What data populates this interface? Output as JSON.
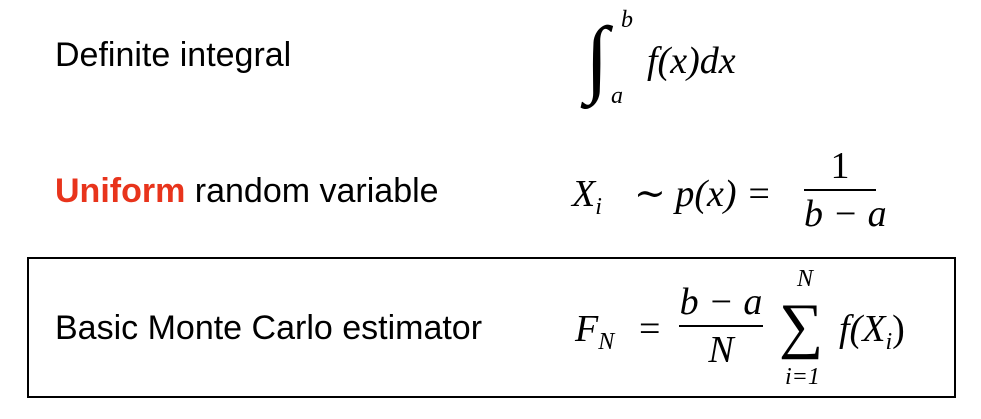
{
  "rows": [
    {
      "label": "Definite integral",
      "math": {
        "upper": "b",
        "lower": "a",
        "integrand": "f(x)dx"
      }
    },
    {
      "label_highlight": "Uniform",
      "label_rest": " random variable",
      "highlight_color": "#e8341c",
      "math": {
        "lhs": "X",
        "lhs_sub": "i",
        "rel": "∼ p(x) =",
        "num": "1",
        "den": "b − a"
      }
    },
    {
      "label": "Basic Monte Carlo estimator",
      "math": {
        "lhs": "F",
        "lhs_sub": "N",
        "eq": "=",
        "num": "b − a",
        "den": "N",
        "sum_upper": "N",
        "sum_lower": "i=1",
        "sum_symbol": "∑",
        "term": "f(X",
        "term_sub": "i",
        "term_close": ")"
      }
    }
  ]
}
